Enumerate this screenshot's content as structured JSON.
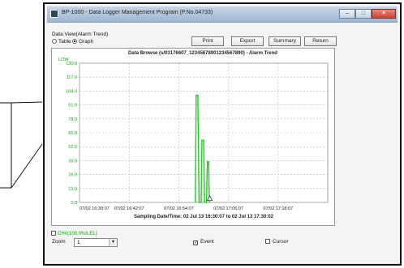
{
  "window": {
    "title": "BP-1000 - Data Logger Management Program (P.No.04733)"
  },
  "header": {
    "view_label": "Data View(Alarm Trend)",
    "radio_table": "Table",
    "radio_graph": "Graph",
    "selected": "Graph"
  },
  "toolbar": {
    "print": "Print",
    "export": "Export",
    "summary": "Summary",
    "return": "Return"
  },
  "footer": {
    "channel_label": "CH#(100.0%/LEL)",
    "zoom_label": "Zoom",
    "zoom_value": "1",
    "event_label": "Event",
    "event_checked": true,
    "cursor_label": "Cursor",
    "cursor_checked": false
  },
  "chart_data": {
    "type": "line",
    "title": "Data Browse (s/03176607_12345678901234567890) - Alarm Trend",
    "ylabel": "LOW",
    "ylim": [
      0,
      130
    ],
    "yticks": [
      "130.0",
      "117.0",
      "104.0",
      "91.0",
      "78.0",
      "65.0",
      "52.0",
      "39.0",
      "26.0",
      "13.0",
      "0.0"
    ],
    "xlabel": "Sampling Date/Time: 02 Jul 13 16:30:07 to 02 Jul 13 17:30:02",
    "xticks": [
      "07/02 16:30:07",
      "07/02 16:42:07",
      "07/02 16:54:07",
      "07/02 17:06:07",
      "07/02 17:18:07"
    ],
    "xrange_minutes": [
      0,
      60
    ],
    "series": [
      {
        "color": "#22cc22",
        "points": [
          [
            28.0,
            0
          ],
          [
            28.2,
            100
          ],
          [
            28.6,
            100
          ],
          [
            28.9,
            0
          ],
          [
            29.4,
            0
          ],
          [
            29.6,
            58
          ],
          [
            30.0,
            58
          ],
          [
            30.2,
            0
          ],
          [
            30.7,
            0
          ],
          [
            30.9,
            38
          ],
          [
            31.2,
            38
          ],
          [
            31.4,
            0
          ]
        ]
      }
    ],
    "grid": true,
    "annotations": [
      "event marker at 07/02 16:59"
    ]
  }
}
